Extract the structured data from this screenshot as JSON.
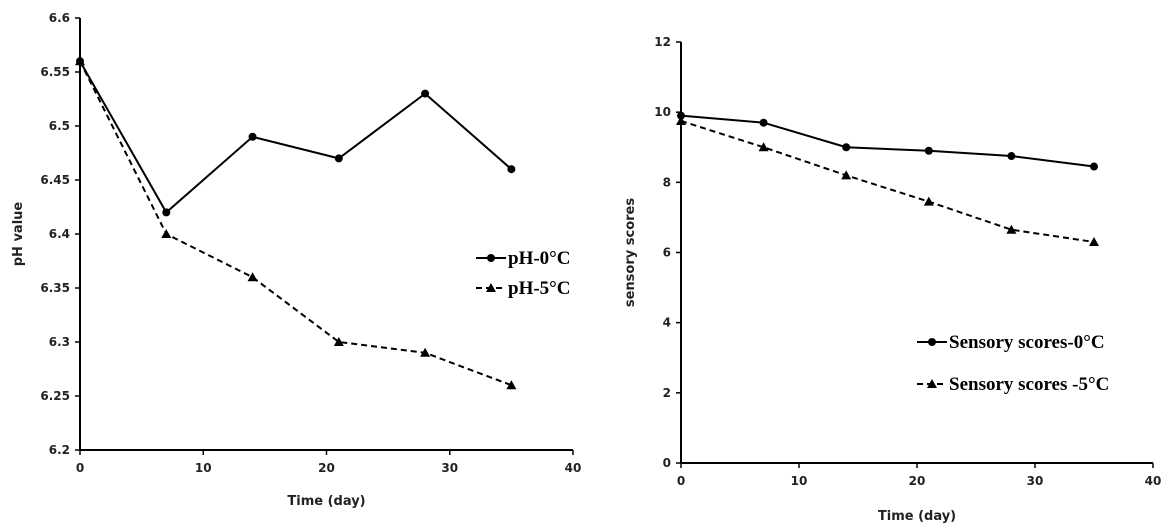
{
  "chart_data": [
    {
      "type": "line",
      "xlabel": "Time (day)",
      "ylabel": "pH value",
      "xlim": [
        0,
        40
      ],
      "ylim": [
        6.2,
        6.6
      ],
      "x_ticks": [
        "0",
        "10",
        "20",
        "30",
        "40"
      ],
      "y_ticks": [
        "6.2",
        "6.25",
        "6.3",
        "6.35",
        "6.4",
        "6.45",
        "6.5",
        "6.55",
        "6.6"
      ],
      "grid": false,
      "legend_position": "right",
      "series": [
        {
          "name": "pH-0°C",
          "marker": "circle",
          "line_style": "solid",
          "color": "#000000",
          "x": [
            0,
            7,
            14,
            21,
            28,
            35
          ],
          "y": [
            6.56,
            6.42,
            6.49,
            6.47,
            6.53,
            6.46
          ]
        },
        {
          "name": "pH-5°C",
          "marker": "triangle",
          "line_style": "dashed",
          "color": "#000000",
          "x": [
            0,
            7,
            14,
            21,
            28,
            35
          ],
          "y": [
            6.56,
            6.4,
            6.36,
            6.3,
            6.29,
            6.26
          ]
        }
      ]
    },
    {
      "type": "line",
      "xlabel": "Time (day)",
      "ylabel": "sensory scores",
      "xlim": [
        0,
        40
      ],
      "ylim": [
        0,
        12
      ],
      "x_ticks": [
        "0",
        "10",
        "20",
        "30",
        "40"
      ],
      "y_ticks": [
        "0",
        "2",
        "4",
        "6",
        "8",
        "10",
        "12"
      ],
      "grid": false,
      "legend_position": "bottom-right",
      "series": [
        {
          "name": "Sensory scores-0°C",
          "marker": "circle",
          "line_style": "solid",
          "color": "#000000",
          "x": [
            0,
            7,
            14,
            21,
            28,
            35
          ],
          "y": [
            9.9,
            9.7,
            9.0,
            8.9,
            8.75,
            8.45
          ]
        },
        {
          "name": "Sensory scores -5°C",
          "marker": "triangle",
          "line_style": "dashed",
          "color": "#000000",
          "x": [
            0,
            7,
            14,
            21,
            28,
            35
          ],
          "y": [
            9.75,
            9.0,
            8.2,
            7.45,
            6.65,
            6.3
          ]
        }
      ]
    }
  ]
}
